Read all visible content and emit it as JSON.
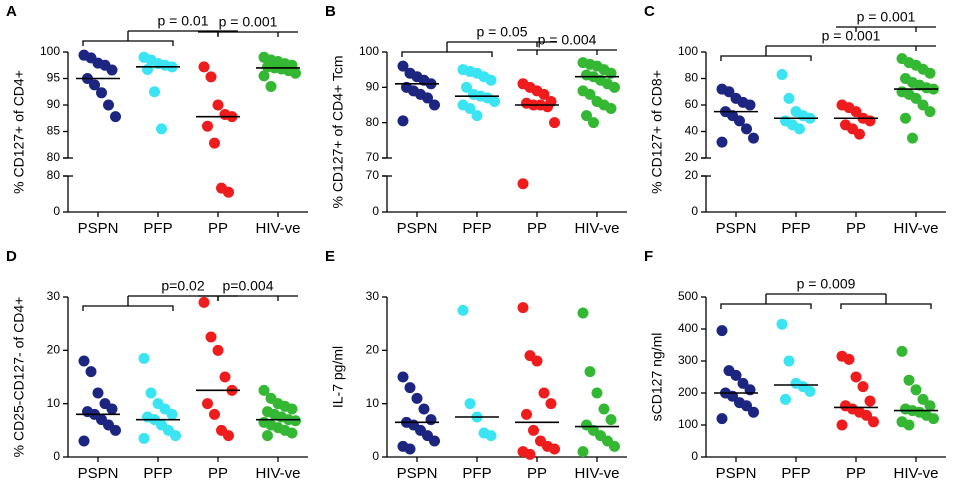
{
  "chart_data": [
    {
      "type": "scatter",
      "label": "A",
      "ylabel": "% CD127+ of CD4+",
      "categories": [
        "PSPN",
        "PFP",
        "PP",
        "HIV-ve"
      ],
      "colors": [
        "#1c2580",
        "#3ae4f2",
        "#ee1c1c",
        "#34b834"
      ],
      "values": [
        [
          99.4,
          98.9,
          97.9,
          97.5,
          96.6,
          95.0,
          93.8,
          92.3,
          90.0,
          87.8
        ],
        [
          99.0,
          98.5,
          97.8,
          97.5,
          97.2,
          96.7,
          92.5,
          85.5
        ],
        [
          97.2,
          95.3,
          90.0,
          88.2,
          87.8,
          86.0,
          82.8,
          53,
          44
        ],
        [
          99.0,
          98.5,
          98.2,
          97.8,
          97.5,
          97.2,
          97.0,
          96.8,
          96.5,
          96.0,
          95.5,
          93.5
        ]
      ],
      "medians": [
        95.0,
        97.2,
        87.8,
        97.0
      ],
      "ylim": [
        80,
        100
      ],
      "yticks": [
        80,
        85,
        90,
        95,
        100
      ],
      "ylim_lower": [
        0,
        80
      ],
      "yticks_lower": [
        0,
        80
      ],
      "annotations": [
        "p = 0.01",
        "p = 0.001"
      ]
    },
    {
      "type": "scatter",
      "label": "B",
      "ylabel": "% CD127+ of CD4+ Tcm",
      "categories": [
        "PSPN",
        "PFP",
        "PP",
        "HIV-ve"
      ],
      "colors": [
        "#1c2580",
        "#3ae4f2",
        "#ee1c1c",
        "#34b834"
      ],
      "values": [
        [
          96,
          94,
          93,
          92,
          91,
          90,
          89,
          88,
          87,
          85,
          80.5
        ],
        [
          95,
          94.5,
          94,
          93,
          92,
          90,
          88,
          87.5,
          87,
          86,
          85,
          84,
          82
        ],
        [
          91,
          90,
          89,
          88,
          86,
          85.5,
          85,
          85,
          84.5,
          80,
          55
        ],
        [
          97,
          96.5,
          96,
          95,
          94,
          93.5,
          93,
          92,
          91,
          90,
          89,
          88,
          86,
          85,
          84,
          82,
          80
        ]
      ],
      "medians": [
        91,
        87.5,
        85,
        93
      ],
      "ylim": [
        70,
        100
      ],
      "yticks": [
        70,
        80,
        90,
        100
      ],
      "ylim_lower": [
        0,
        70
      ],
      "yticks_lower": [
        0,
        70
      ],
      "annotations": [
        "p = 0.05",
        "p = 0.004"
      ]
    },
    {
      "type": "scatter",
      "label": "C",
      "ylabel": "% CD127+ of CD8+",
      "categories": [
        "PSPN",
        "PFP",
        "PP",
        "HIV-ve"
      ],
      "colors": [
        "#1c2580",
        "#3ae4f2",
        "#ee1c1c",
        "#34b834"
      ],
      "values": [
        [
          72,
          70,
          65,
          62,
          60,
          55,
          52,
          48,
          42,
          35,
          32
        ],
        [
          83,
          65,
          55,
          52,
          50,
          48,
          45,
          42
        ],
        [
          60,
          58,
          55,
          50,
          48,
          45,
          42,
          38
        ],
        [
          95,
          92,
          90,
          87,
          84,
          80,
          77,
          75,
          73,
          72,
          70,
          68,
          65,
          60,
          55,
          50,
          35
        ]
      ],
      "medians": [
        55,
        50,
        50,
        72
      ],
      "ylim": [
        20,
        100
      ],
      "yticks": [
        20,
        40,
        60,
        80,
        100
      ],
      "ylim_lower": [
        0,
        20
      ],
      "yticks_lower": [
        0,
        20
      ],
      "annotations": [
        "p = 0.001",
        "p = 0.001"
      ]
    },
    {
      "type": "scatter",
      "label": "D",
      "ylabel": "% CD25-CD127- of CD4+",
      "categories": [
        "PSPN",
        "PFP",
        "PP",
        "HIV-ve"
      ],
      "colors": [
        "#1c2580",
        "#3ae4f2",
        "#ee1c1c",
        "#34b834"
      ],
      "values": [
        [
          18,
          16,
          12,
          10,
          9,
          8.5,
          8,
          7,
          6,
          5,
          3
        ],
        [
          18.5,
          12,
          10,
          9,
          8,
          7.5,
          7,
          6,
          5,
          4,
          3.5
        ],
        [
          29,
          22.5,
          20,
          15,
          12.5,
          10,
          8,
          5,
          4
        ],
        [
          12.5,
          11,
          10,
          9.5,
          9,
          8.5,
          8,
          7.5,
          7,
          6.8,
          6.5,
          6,
          5.5,
          5,
          4.5,
          4
        ]
      ],
      "medians": [
        8,
        7,
        12.5,
        7
      ],
      "ylim": [
        0,
        30
      ],
      "yticks": [
        0,
        10,
        20,
        30
      ],
      "annotations": [
        "p=0.02",
        "p=0.004"
      ]
    },
    {
      "type": "scatter",
      "label": "E",
      "ylabel": "IL-7 pg/ml",
      "categories": [
        "PSPN",
        "PFP",
        "PP",
        "HIV-ve"
      ],
      "colors": [
        "#1c2580",
        "#3ae4f2",
        "#ee1c1c",
        "#34b834"
      ],
      "values": [
        [
          15,
          13,
          11,
          9,
          7,
          6.5,
          6,
          5,
          4,
          3,
          2,
          1.5
        ],
        [
          27.5,
          10,
          7.5,
          4.5,
          4
        ],
        [
          28,
          19,
          18,
          12,
          10,
          8,
          5,
          3,
          2,
          1.5,
          1,
          0.5
        ],
        [
          27,
          16,
          12,
          9,
          7,
          6,
          5,
          4,
          3,
          2,
          1
        ]
      ],
      "medians": [
        6.5,
        7.5,
        6.5,
        5.7
      ],
      "ylim": [
        0,
        30
      ],
      "yticks": [
        0,
        10,
        20,
        30
      ],
      "annotations": []
    },
    {
      "type": "scatter",
      "label": "F",
      "ylabel": "sCD127 ng/ml",
      "categories": [
        "PSPN",
        "PFP",
        "PP",
        "HIV-ve"
      ],
      "colors": [
        "#1c2580",
        "#3ae4f2",
        "#ee1c1c",
        "#34b834"
      ],
      "values": [
        [
          395,
          270,
          255,
          230,
          210,
          200,
          190,
          170,
          160,
          140,
          120
        ],
        [
          415,
          300,
          230,
          220,
          205,
          180
        ],
        [
          315,
          305,
          250,
          220,
          175,
          160,
          150,
          140,
          130,
          110,
          100
        ],
        [
          330,
          240,
          210,
          180,
          160,
          150,
          145,
          140,
          130,
          120,
          110,
          100
        ]
      ],
      "medians": [
        200,
        225,
        155,
        145
      ],
      "ylim": [
        0,
        500
      ],
      "yticks": [
        0,
        100,
        200,
        300,
        400,
        500
      ],
      "annotations": [
        "p = 0.009"
      ]
    }
  ]
}
